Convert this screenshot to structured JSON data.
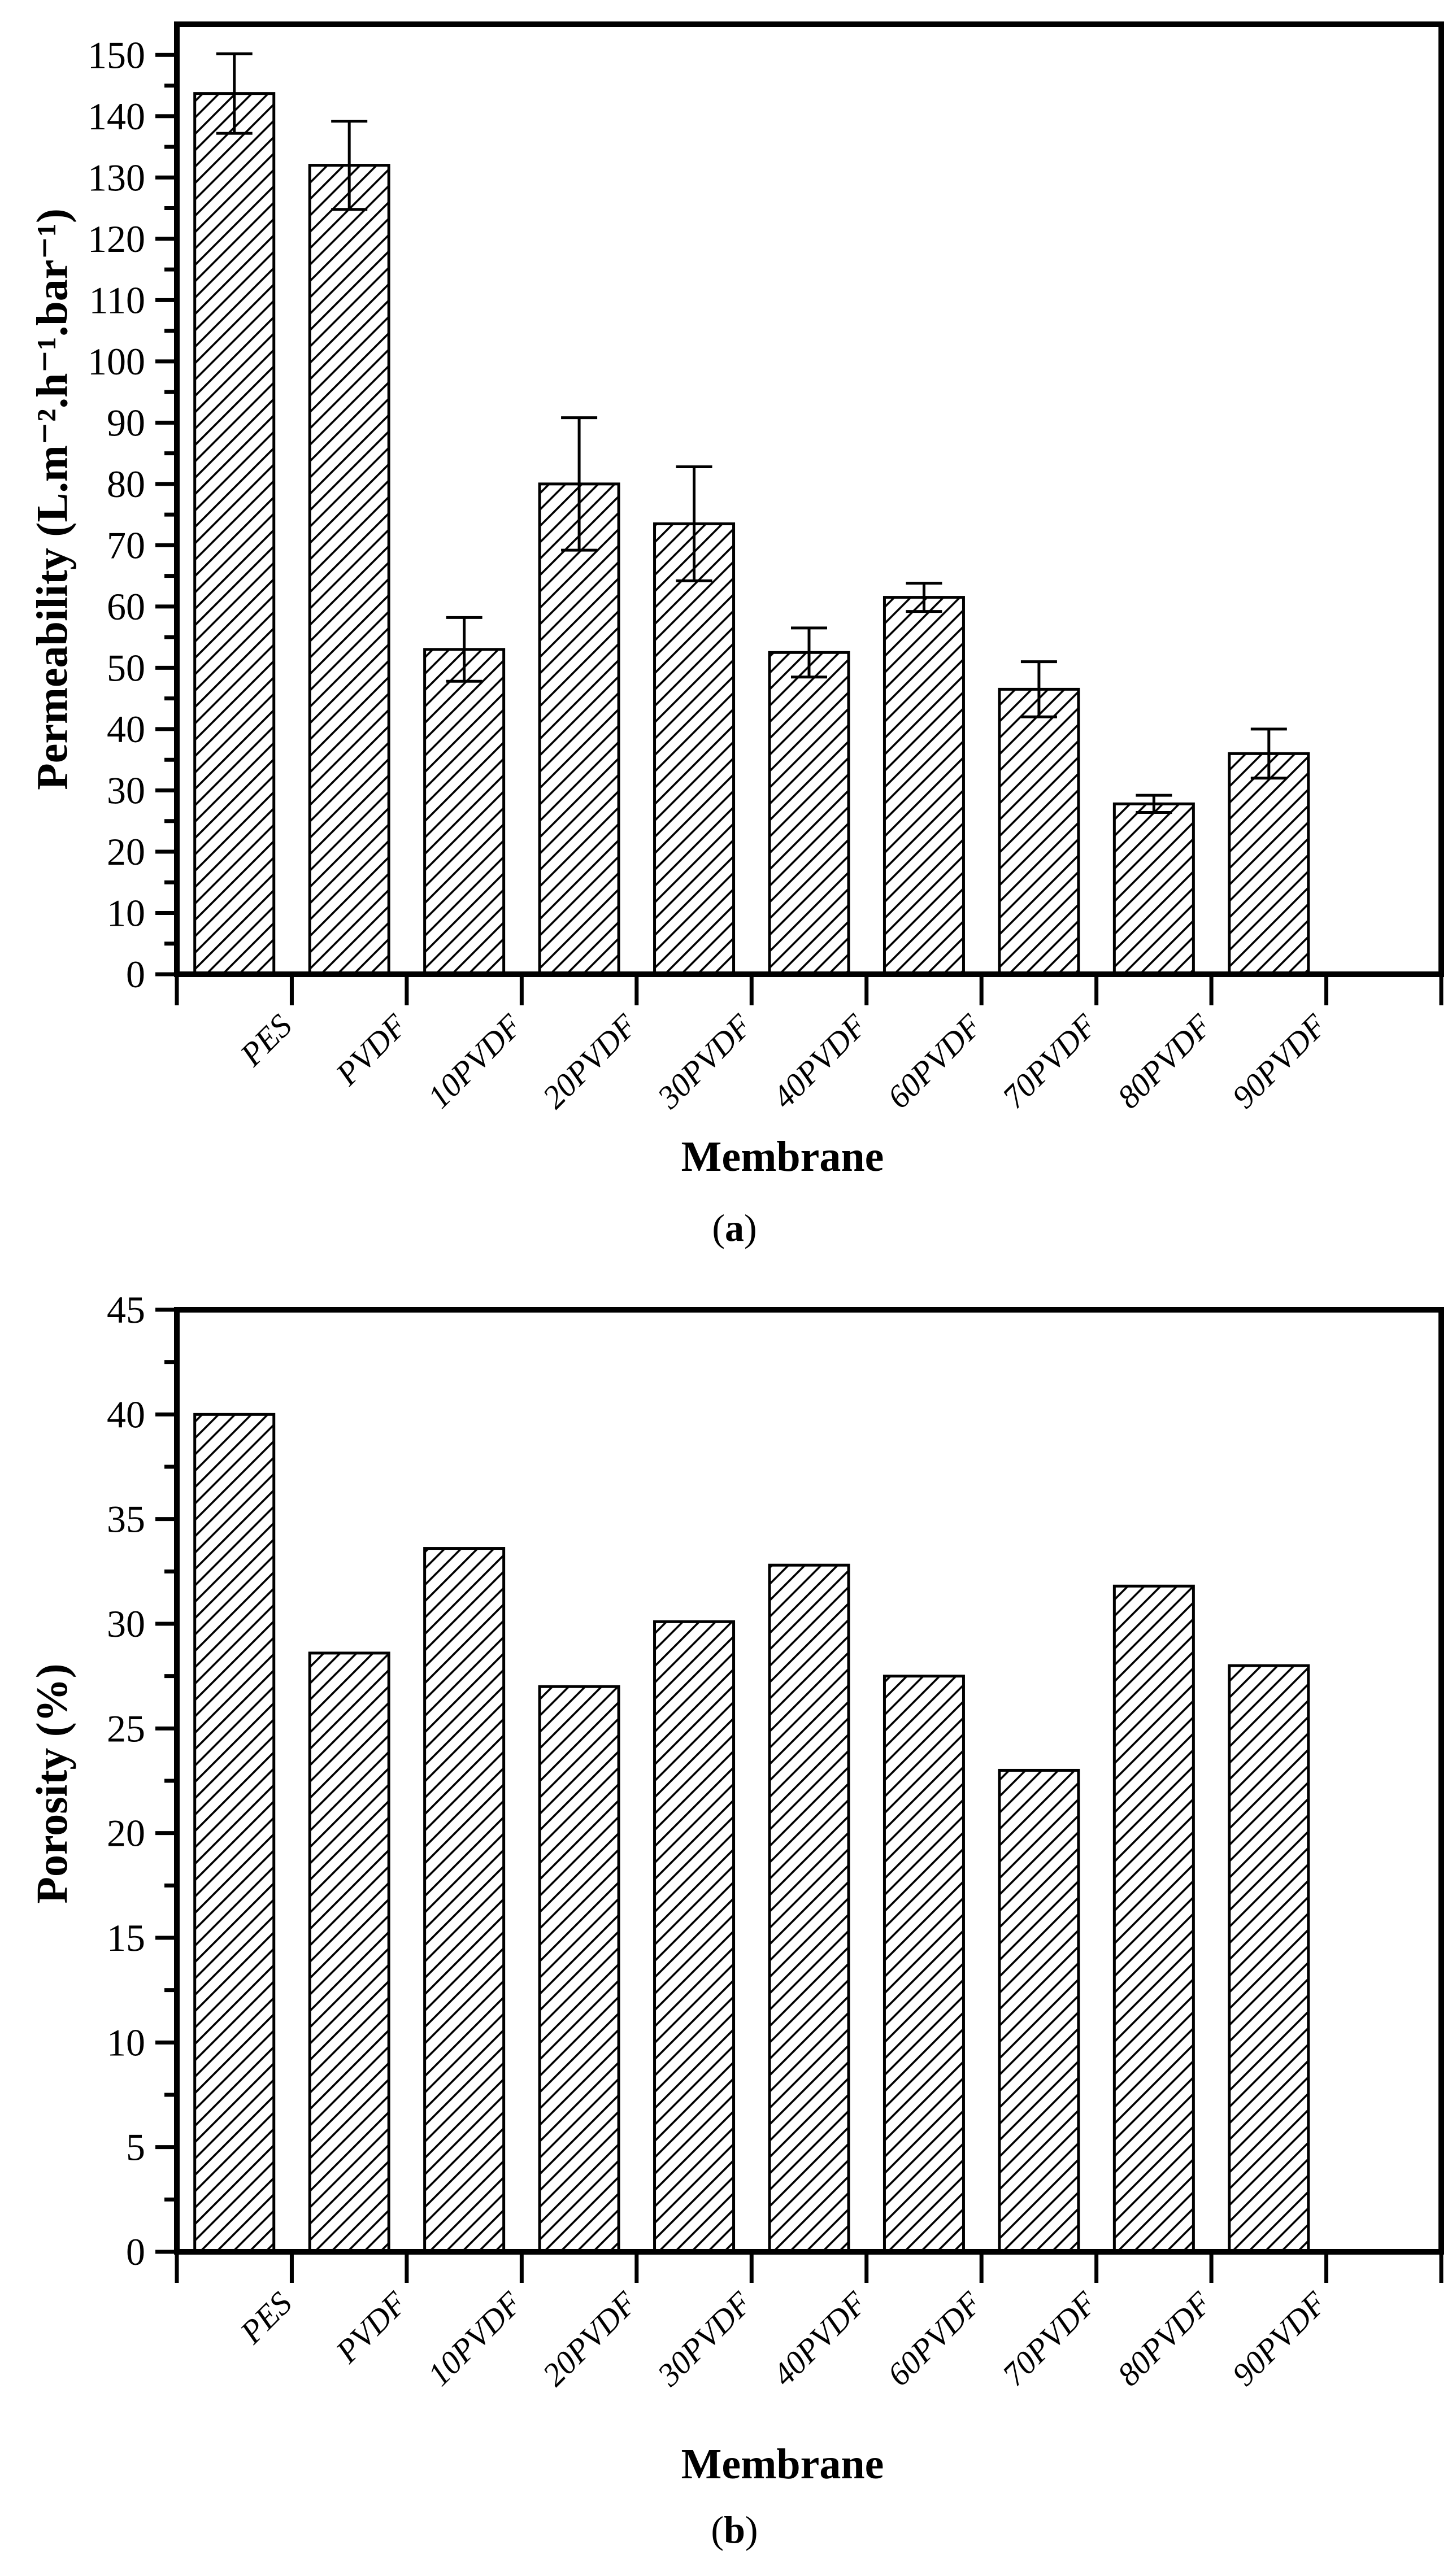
{
  "figure": {
    "background_color": "#ffffff",
    "ink_color": "#000000",
    "description_visible_panels": 2
  },
  "chart_data": [
    {
      "type": "bar",
      "panel": "a",
      "categories": [
        "PES",
        "PVDF",
        "10PVDF",
        "20PVDF",
        "30PVDF",
        "40PVDF",
        "60PVDF",
        "70PVDF",
        "80PVDF",
        "90PVDF"
      ],
      "values": [
        143.7,
        132.0,
        53.0,
        80.0,
        73.5,
        52.5,
        61.5,
        46.5,
        27.8,
        36.0
      ],
      "errors": [
        6.5,
        7.2,
        5.2,
        10.8,
        9.3,
        4.0,
        2.3,
        4.5,
        1.4,
        4.0
      ],
      "xlabel": "Membrane",
      "ylabel": "Permeability (L.m⁻².h⁻¹.bar⁻¹)",
      "ylim": [
        0,
        155
      ],
      "yticks": [
        0,
        10,
        20,
        30,
        40,
        50,
        60,
        70,
        80,
        90,
        100,
        110,
        120,
        130,
        140,
        150
      ],
      "minor_tick_step": 5,
      "grid": "off",
      "legend": "none",
      "bar_hatch": "diagonal-forward",
      "bar_fill": "#ffffff",
      "bar_edge": "#000000",
      "caption_open": "(",
      "caption_letter": "a",
      "caption_close": ")"
    },
    {
      "type": "bar",
      "panel": "b",
      "categories": [
        "PES",
        "PVDF",
        "10PVDF",
        "20PVDF",
        "30PVDF",
        "40PVDF",
        "60PVDF",
        "70PVDF",
        "80PVDF",
        "90PVDF"
      ],
      "values": [
        40.0,
        28.6,
        33.6,
        27.0,
        30.1,
        32.8,
        27.5,
        23.0,
        31.8,
        28.0
      ],
      "errors": null,
      "xlabel": "Membrane",
      "ylabel": "Porosity (%)",
      "ylim": [
        0,
        45
      ],
      "yticks": [
        0,
        5,
        10,
        15,
        20,
        25,
        30,
        35,
        40,
        45
      ],
      "minor_tick_step": 2.5,
      "grid": "off",
      "legend": "none",
      "bar_hatch": "diagonal-forward",
      "bar_fill": "#ffffff",
      "bar_edge": "#000000",
      "caption_open": "(",
      "caption_letter": "b",
      "caption_close": ")"
    }
  ]
}
